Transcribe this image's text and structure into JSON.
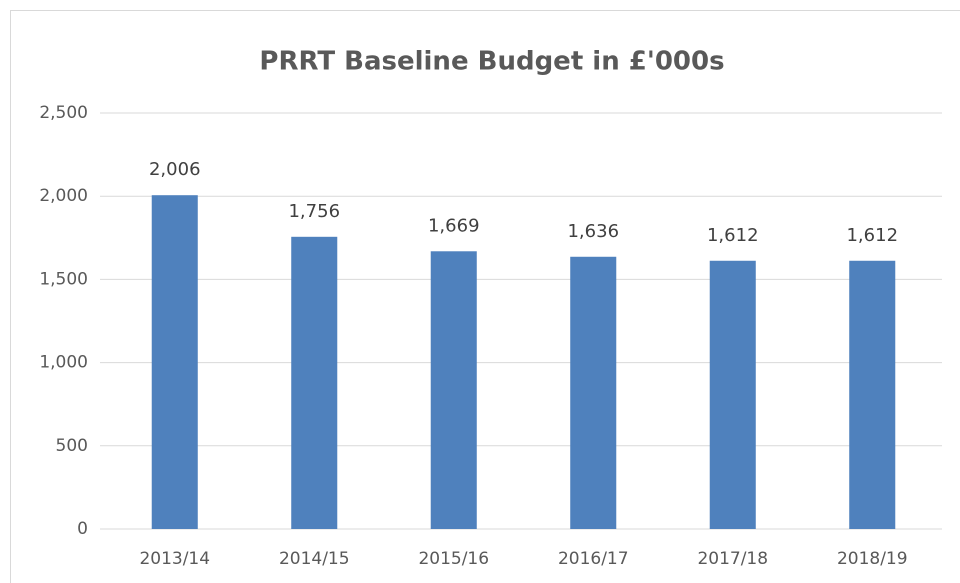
{
  "chart_data": {
    "type": "bar",
    "title": "PRRT Baseline Budget in £'000s",
    "categories": [
      "2013/14",
      "2014/15",
      "2015/16",
      "2016/17",
      "2017/18",
      "2018/19"
    ],
    "values": [
      2006,
      1756,
      1669,
      1636,
      1612,
      1612
    ],
    "value_labels": [
      "2,006",
      "1,756",
      "1,669",
      "1,636",
      "1,612",
      "1,612"
    ],
    "color": "#4f81bd",
    "ylim": [
      0,
      2500
    ],
    "yticks": [
      0,
      500,
      {
        "value": 1000,
        "label": "1,000"
      },
      {
        "value": 1500,
        "label": "1,500"
      },
      {
        "value": 2000,
        "label": "2,000"
      },
      {
        "value": 2500,
        "label": "2,500"
      }
    ],
    "grid": true
  }
}
